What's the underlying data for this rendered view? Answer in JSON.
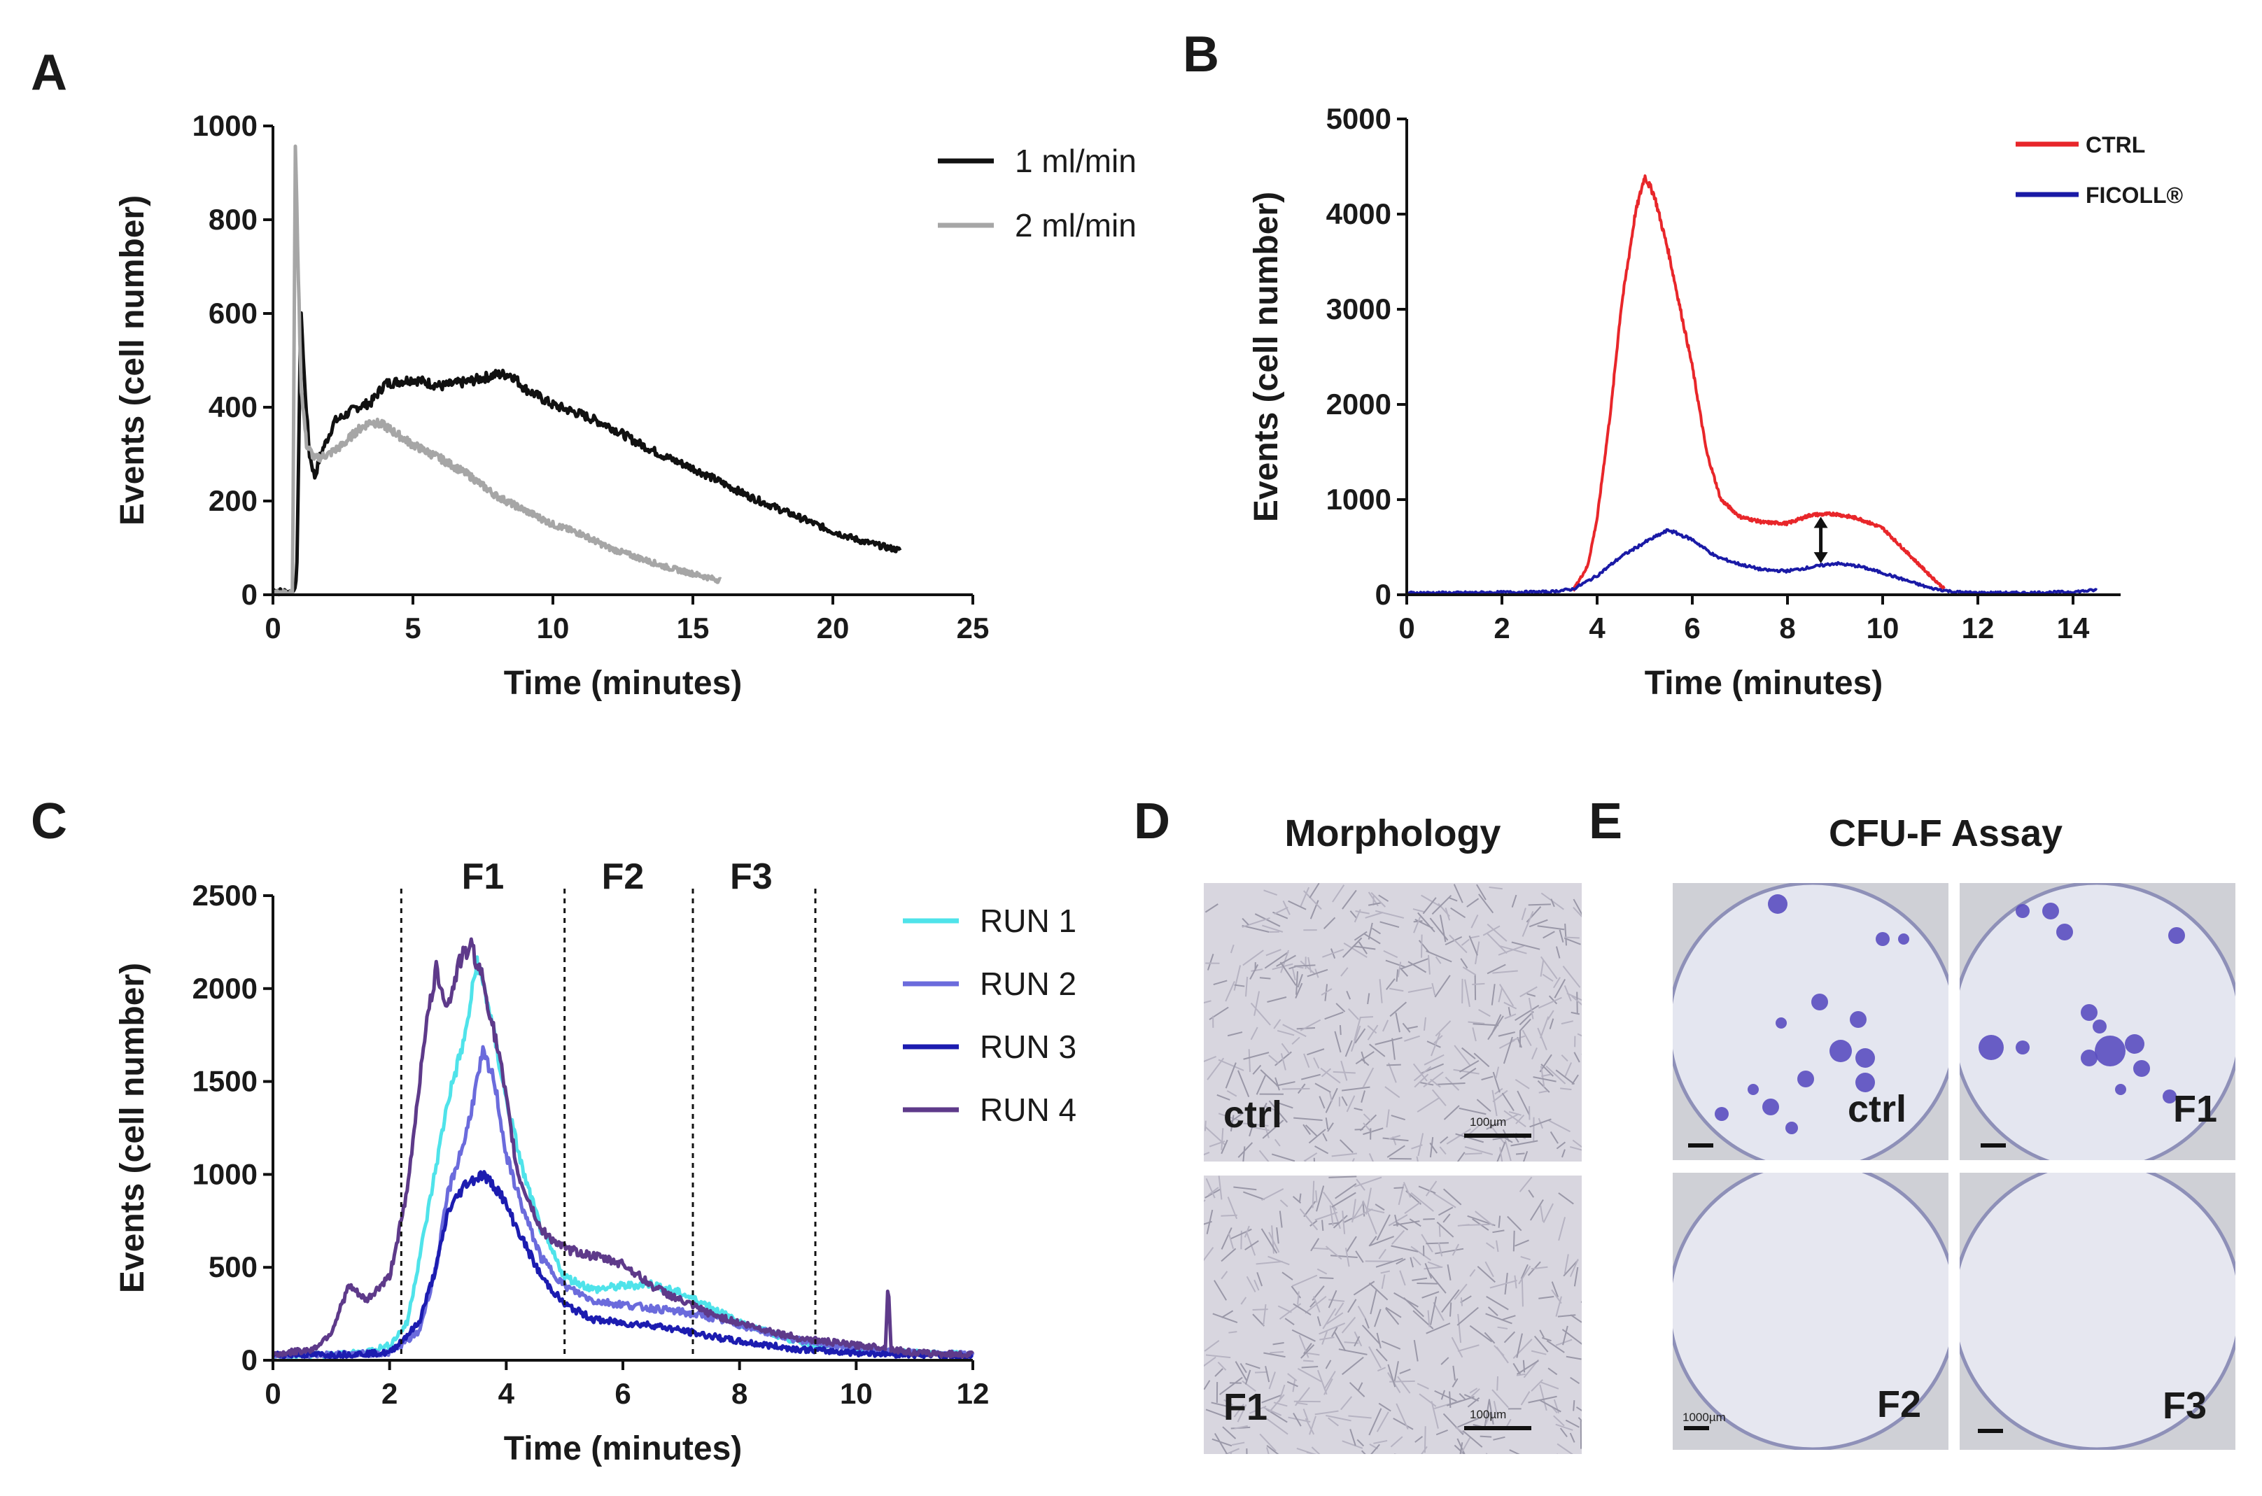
{
  "panels": {
    "A": {
      "letter": "A"
    },
    "B": {
      "letter": "B"
    },
    "C": {
      "letter": "C"
    },
    "D": {
      "letter": "D",
      "title": "Morphology",
      "images": [
        {
          "label": "ctrl",
          "scale": "100µm"
        },
        {
          "label": "F1",
          "scale": "100µm"
        }
      ]
    },
    "E": {
      "letter": "E",
      "title": "CFU-F Assay",
      "images": [
        {
          "label": "ctrl",
          "scale": ""
        },
        {
          "label": "F1",
          "scale": ""
        },
        {
          "label": "F2",
          "scale": "1000µm"
        },
        {
          "label": "F3",
          "scale": ""
        }
      ]
    }
  },
  "colors": {
    "black": "#111111",
    "gray": "#a6a6a6",
    "red": "#e8262a",
    "blue": "#1a1aa6",
    "run1": "#4fe3ea",
    "run2": "#6b6bdc",
    "run3": "#1c1cb0",
    "run4": "#5e3a8a",
    "colony": "#5a4ec0"
  },
  "chart_data": [
    {
      "id": "A",
      "type": "line",
      "xlabel": "Time (minutes)",
      "ylabel": "Events (cell number)",
      "xlim": [
        0,
        25
      ],
      "ylim": [
        0,
        1000
      ],
      "xticks": [
        0,
        5,
        10,
        15,
        20,
        25
      ],
      "yticks": [
        0,
        200,
        400,
        600,
        800,
        1000
      ],
      "legend_position": "top-right",
      "series": [
        {
          "name": "1 ml/min",
          "color": "#111111",
          "x": [
            0,
            0.4,
            0.7,
            0.85,
            1.0,
            1.1,
            1.3,
            1.5,
            1.7,
            2.0,
            2.2,
            2.5,
            3,
            3.5,
            4,
            5,
            6,
            7,
            8,
            8.5,
            9,
            10,
            11,
            12,
            13,
            14,
            15,
            16,
            17,
            18,
            19,
            20,
            21,
            22,
            22.4
          ],
          "y": [
            10,
            8,
            5,
            30,
            620,
            480,
            300,
            250,
            300,
            340,
            370,
            380,
            400,
            410,
            450,
            460,
            445,
            455,
            470,
            470,
            440,
            405,
            385,
            360,
            325,
            295,
            270,
            240,
            210,
            185,
            160,
            135,
            115,
            100,
            95
          ]
        },
        {
          "name": "2 ml/min",
          "color": "#a6a6a6",
          "x": [
            0,
            0.5,
            0.7,
            0.8,
            0.9,
            1.0,
            1.2,
            1.5,
            2,
            2.5,
            3,
            3.5,
            4,
            5,
            6,
            7,
            8,
            9,
            10,
            11,
            12,
            13,
            14,
            15,
            16
          ],
          "y": [
            5,
            5,
            10,
            960,
            700,
            450,
            320,
            290,
            300,
            320,
            350,
            370,
            360,
            320,
            290,
            255,
            210,
            180,
            150,
            130,
            100,
            80,
            60,
            45,
            30
          ]
        }
      ]
    },
    {
      "id": "B",
      "type": "line",
      "xlabel": "Time (minutes)",
      "ylabel": "Events (cell number)",
      "xlim": [
        0,
        15
      ],
      "ylim": [
        0,
        5000
      ],
      "xticks": [
        0,
        2,
        4,
        6,
        8,
        10,
        12,
        14
      ],
      "yticks": [
        0,
        1000,
        2000,
        3000,
        4000,
        5000
      ],
      "legend_position": "top-right",
      "annotation": "double-headed arrow at 8.7 min between FICOLL and CTRL",
      "series": [
        {
          "name": "CTRL",
          "color": "#e8262a",
          "x": [
            3.5,
            3.8,
            4.0,
            4.3,
            4.5,
            4.8,
            5.0,
            5.2,
            5.5,
            6.0,
            6.3,
            6.6,
            7.0,
            7.5,
            8.0,
            8.5,
            9.0,
            9.5,
            10.0,
            10.5,
            11.0,
            11.3
          ],
          "y": [
            50,
            300,
            800,
            2000,
            3000,
            4000,
            4400,
            4200,
            3600,
            2400,
            1500,
            1000,
            820,
            760,
            750,
            840,
            850,
            800,
            700,
            450,
            200,
            60
          ]
        },
        {
          "name": "FICOLL®",
          "color": "#1a1aa6",
          "x": [
            0,
            1,
            2,
            3,
            3.5,
            4.0,
            4.5,
            5.0,
            5.5,
            6.0,
            6.5,
            7.0,
            7.5,
            8.0,
            8.5,
            9.0,
            9.5,
            10.0,
            10.5,
            11.0,
            11.5,
            12.0,
            13.0,
            14.0,
            14.5
          ],
          "y": [
            20,
            20,
            25,
            30,
            60,
            200,
            400,
            550,
            680,
            580,
            400,
            320,
            260,
            250,
            290,
            330,
            300,
            230,
            150,
            70,
            30,
            20,
            20,
            30,
            50
          ]
        }
      ]
    },
    {
      "id": "C",
      "type": "line",
      "xlabel": "Time (minutes)",
      "ylabel": "Events (cell number)",
      "xlim": [
        0,
        12
      ],
      "ylim": [
        0,
        2500
      ],
      "xticks": [
        0,
        2,
        4,
        6,
        8,
        10,
        12
      ],
      "yticks": [
        0,
        500,
        1000,
        1500,
        2000,
        2500
      ],
      "legend_position": "right",
      "fraction_dividers": [
        2.2,
        5.0,
        7.2,
        9.3
      ],
      "fractions": [
        {
          "label": "F1",
          "x": 3.6
        },
        {
          "label": "F2",
          "x": 6.0
        },
        {
          "label": "F3",
          "x": 8.2
        }
      ],
      "series": [
        {
          "name": "RUN 1",
          "color": "#4fe3ea",
          "x": [
            0,
            1,
            1.5,
            2.0,
            2.3,
            2.6,
            3.0,
            3.3,
            3.5,
            3.7,
            4.0,
            4.3,
            4.6,
            5.0,
            5.5,
            6.0,
            6.5,
            7.0,
            7.5,
            8.0,
            9.0,
            10,
            11,
            12
          ],
          "y": [
            30,
            30,
            40,
            80,
            200,
            700,
            1400,
            1750,
            2150,
            1900,
            1400,
            1000,
            700,
            450,
            380,
            400,
            410,
            360,
            290,
            200,
            100,
            60,
            40,
            30
          ]
        },
        {
          "name": "RUN 2",
          "color": "#6b6bdc",
          "x": [
            0,
            1,
            2.0,
            2.5,
            2.8,
            3.0,
            3.3,
            3.6,
            3.8,
            4.0,
            4.3,
            4.6,
            5.0,
            5.5,
            6.0,
            6.5,
            7.0,
            7.5,
            8,
            9,
            10,
            11,
            12
          ],
          "y": [
            30,
            30,
            40,
            150,
            500,
            900,
            1200,
            1650,
            1500,
            1100,
            800,
            550,
            400,
            320,
            300,
            280,
            260,
            230,
            190,
            110,
            60,
            40,
            30
          ]
        },
        {
          "name": "RUN 3",
          "color": "#1c1cb0",
          "x": [
            0,
            1,
            2.0,
            2.5,
            2.8,
            3.0,
            3.3,
            3.6,
            3.9,
            4.2,
            4.6,
            5.0,
            5.5,
            6.0,
            6.5,
            7.0,
            7.5,
            8,
            9,
            10,
            11,
            12
          ],
          "y": [
            30,
            30,
            40,
            200,
            500,
            800,
            950,
            1000,
            900,
            700,
            450,
            300,
            220,
            200,
            190,
            160,
            130,
            100,
            60,
            40,
            30,
            20
          ]
        },
        {
          "name": "RUN 4",
          "color": "#5e3a8a",
          "x": [
            0,
            0.7,
            1.0,
            1.3,
            1.6,
            2.0,
            2.3,
            2.6,
            2.8,
            3.0,
            3.2,
            3.4,
            3.6,
            3.9,
            4.2,
            4.6,
            5.0,
            5.5,
            6.0,
            6.5,
            7.0,
            7.5,
            8.0,
            9.0,
            10.0,
            10.5,
            10.55,
            10.6,
            11,
            12
          ],
          "y": [
            30,
            60,
            150,
            400,
            320,
            450,
            900,
            1750,
            2100,
            1900,
            2150,
            2230,
            2050,
            1600,
            1000,
            700,
            600,
            560,
            520,
            400,
            320,
            250,
            200,
            120,
            80,
            70,
            430,
            60,
            40,
            30
          ]
        }
      ]
    }
  ]
}
